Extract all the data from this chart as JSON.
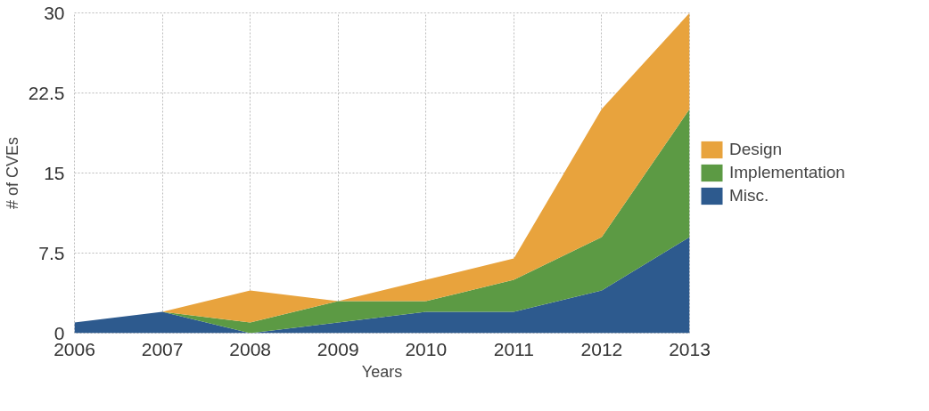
{
  "chart_data": {
    "type": "area",
    "stacked": true,
    "xlabel": "Years",
    "ylabel": "# of CVEs",
    "x": [
      2006,
      2007,
      2008,
      2009,
      2010,
      2011,
      2012,
      2013
    ],
    "series": [
      {
        "name": "Misc.",
        "color": "#2d5a8e",
        "values": [
          1,
          2,
          0,
          1,
          2,
          2,
          4,
          9
        ]
      },
      {
        "name": "Implementation",
        "color": "#5c9a44",
        "values": [
          0,
          0,
          1,
          2,
          1,
          3,
          5,
          12
        ]
      },
      {
        "name": "Design",
        "color": "#e8a33d",
        "values": [
          0,
          0,
          3,
          0,
          2,
          2,
          12,
          9
        ]
      }
    ],
    "xlim": [
      2006,
      2013
    ],
    "ylim": [
      0,
      30
    ],
    "xticks": [
      2006,
      2007,
      2008,
      2009,
      2010,
      2011,
      2012,
      2013
    ],
    "yticks": [
      0,
      7.5,
      15,
      22.5,
      30
    ],
    "grid": true,
    "legend": "right"
  }
}
